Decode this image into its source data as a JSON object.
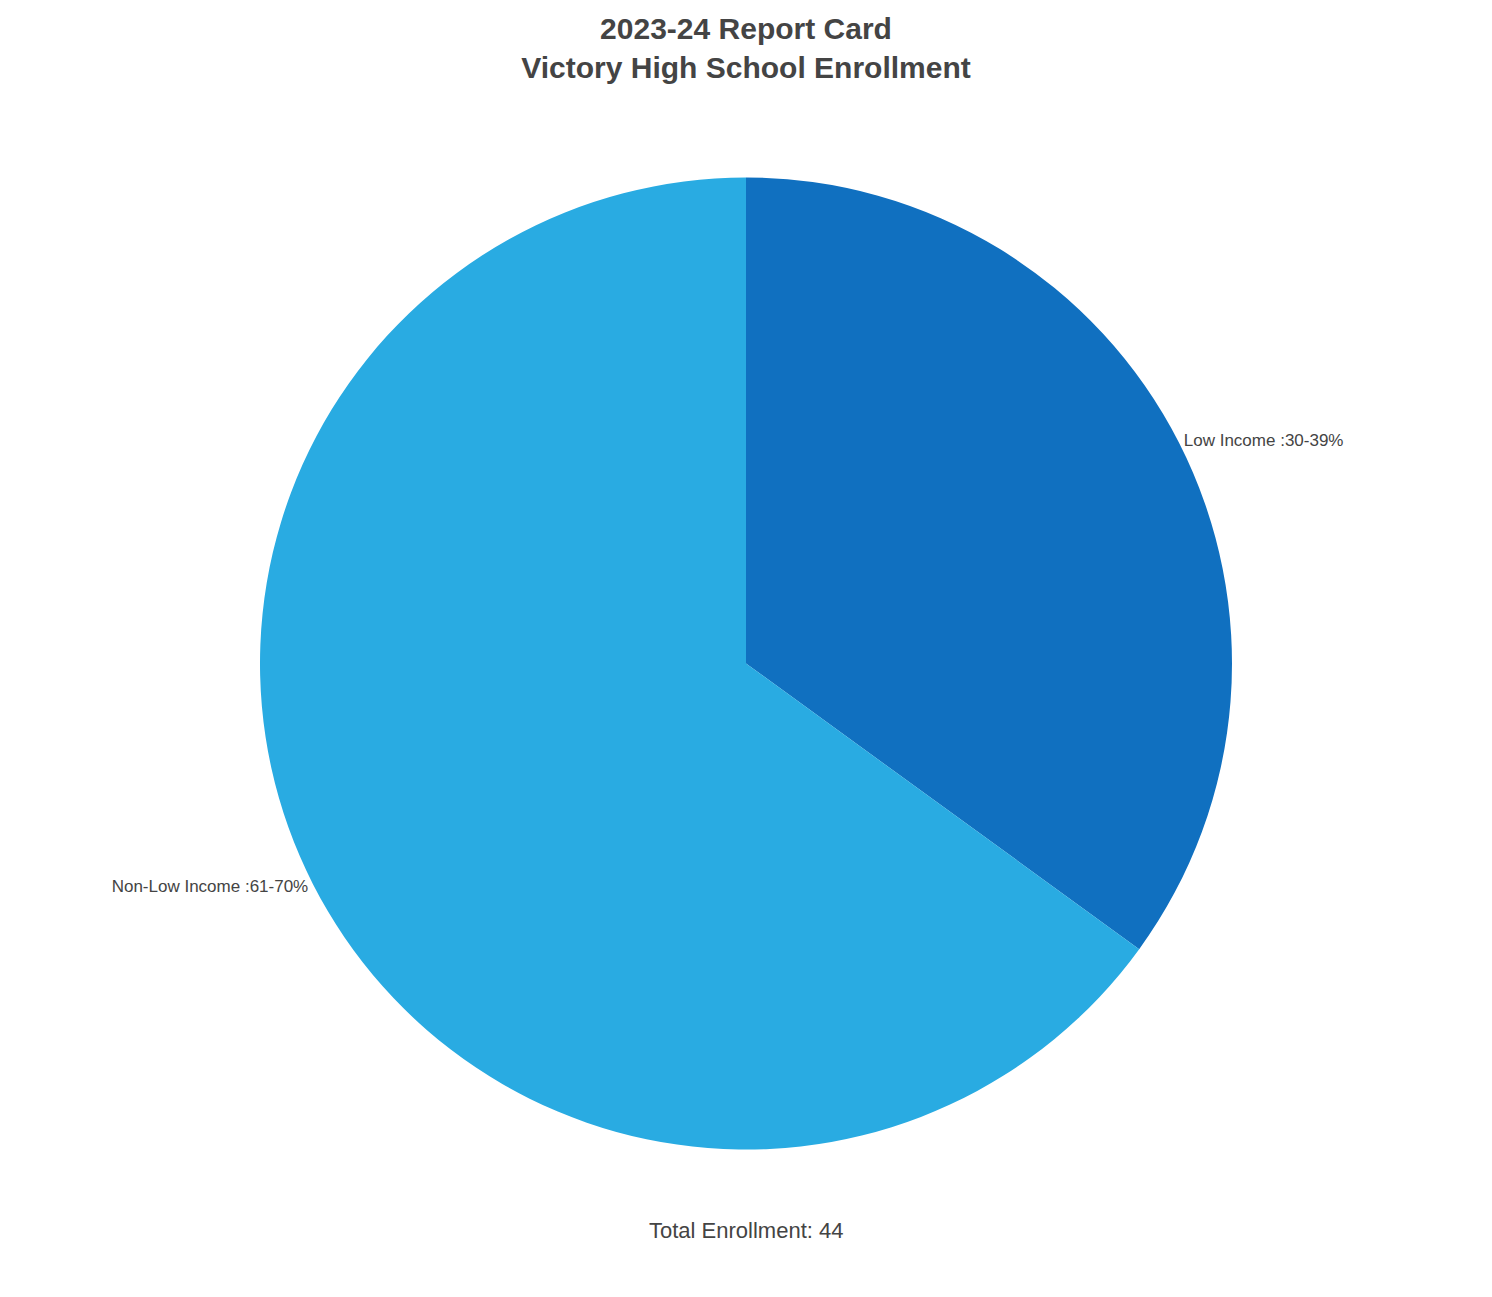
{
  "chart_data": {
    "type": "pie",
    "title": "2023-24 Report Card",
    "subtitle": "Victory High School Enrollment",
    "categories": [
      "Low Income :30-39%",
      "Non-Low Income :61-70%"
    ],
    "values": [
      35,
      65
    ],
    "colors": [
      "#1070C0",
      "#29ABE2"
    ],
    "annotations": [
      "Total Enrollment: 44"
    ]
  }
}
